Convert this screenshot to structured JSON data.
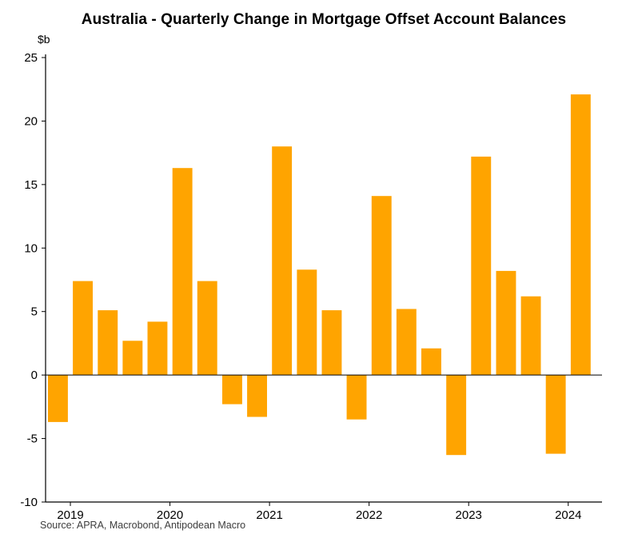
{
  "title": "Australia - Quarterly Change in Mortgage Offset Account Balances",
  "unit_label": "$b",
  "source": "Source: APRA, Macrobond, Antipodean Macro",
  "colors": {
    "bar": "#FFA400",
    "axis": "#000000",
    "source_text": "#3d3d3d",
    "background": "#ffffff"
  },
  "chart_data": {
    "type": "bar",
    "title": "Australia - Quarterly Change in Mortgage Offset Account Balances",
    "xlabel": "",
    "ylabel": "$b",
    "ylim": [
      -10,
      25
    ],
    "yticks": [
      25,
      20,
      15,
      10,
      5,
      0,
      -5,
      -10
    ],
    "grid": false,
    "legend": false,
    "x": [
      "2018 Q4",
      "2019 Q1",
      "2019 Q2",
      "2019 Q3",
      "2019 Q4",
      "2020 Q1",
      "2020 Q2",
      "2020 Q3",
      "2020 Q4",
      "2021 Q1",
      "2021 Q2",
      "2021 Q3",
      "2021 Q4",
      "2022 Q1",
      "2022 Q2",
      "2022 Q3",
      "2022 Q4",
      "2023 Q1",
      "2023 Q2",
      "2023 Q3",
      "2023 Q4",
      "2024 Q1"
    ],
    "values": [
      -3.7,
      7.4,
      5.1,
      2.7,
      4.2,
      16.3,
      7.4,
      -2.3,
      -3.3,
      18.0,
      8.3,
      5.1,
      -3.5,
      14.1,
      5.2,
      2.1,
      -6.3,
      17.2,
      8.2,
      6.2,
      -6.2,
      22.1
    ],
    "year_tick_labels": [
      "2019",
      "2020",
      "2021",
      "2022",
      "2023",
      "2024"
    ]
  }
}
